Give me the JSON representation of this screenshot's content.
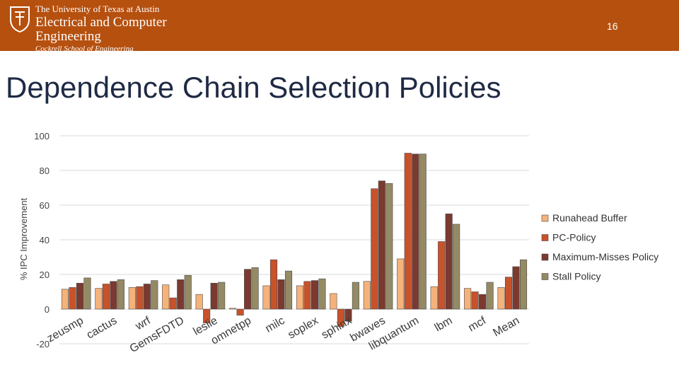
{
  "header": {
    "university": "The University of Texas at Austin",
    "dept_line1": "Electrical and Computer",
    "dept_line2": "Engineering",
    "school": "Cockrell School of Engineering",
    "page_number": "16",
    "brand_color": "#b6500f"
  },
  "slide": {
    "title": "Dependence Chain Selection Policies"
  },
  "chart_data": {
    "type": "bar",
    "title": "",
    "xlabel": "",
    "ylabel": "% IPC Improvement",
    "ylim": [
      -20,
      100
    ],
    "yticks": [
      -20,
      0,
      20,
      40,
      60,
      80,
      100
    ],
    "grid": true,
    "legend_position": "right",
    "categories": [
      "zeusmp",
      "cactus",
      "wrf",
      "GemsFDTD",
      "leslie",
      "omnetpp",
      "milc",
      "soplex",
      "sphinx",
      "bwaves",
      "libquantum",
      "lbm",
      "mcf",
      "Mean"
    ],
    "series": [
      {
        "name": "Runahead Buffer",
        "color": "#f5b27a",
        "values": [
          11.5,
          12,
          12.5,
          14,
          8.5,
          0.5,
          13.5,
          13.5,
          9,
          16,
          29,
          13,
          12,
          12.5
        ]
      },
      {
        "name": "PC-Policy",
        "color": "#c8522a",
        "values": [
          12.5,
          14.5,
          13,
          6.5,
          -8,
          -3.5,
          28.5,
          16,
          -10,
          69.5,
          90,
          39,
          10,
          18.5
        ]
      },
      {
        "name": "Maximum-Misses Policy",
        "color": "#7a3a30",
        "values": [
          15,
          16,
          14.5,
          17,
          15,
          23,
          17,
          16.5,
          -7,
          74,
          89.5,
          55,
          8.5,
          24.5
        ]
      },
      {
        "name": "Stall Policy",
        "color": "#948a64",
        "values": [
          18,
          17,
          16.5,
          19.5,
          15.5,
          24,
          22,
          17.5,
          15.5,
          72.5,
          89.5,
          49,
          15.5,
          28.5
        ]
      }
    ]
  }
}
